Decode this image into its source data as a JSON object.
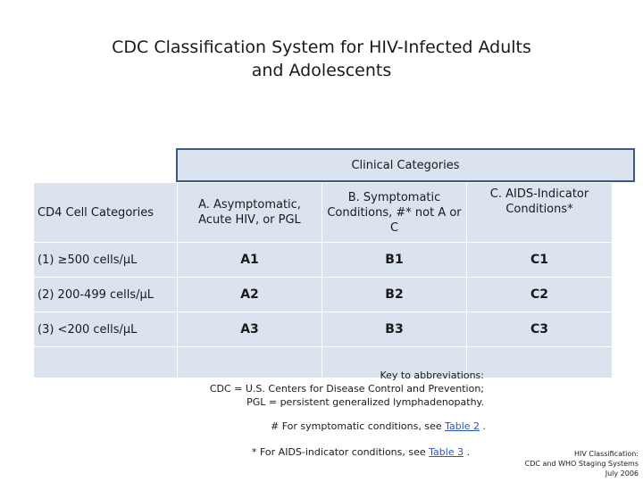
{
  "title": {
    "line1": "CDC Classification System for HIV-Infected Adults",
    "line2": "and Adolescents"
  },
  "clinical_header": "Clinical Categories",
  "table": {
    "row_header": "CD4 Cell Categories",
    "col_a": "A. Asymptomatic, Acute HIV, or PGL",
    "col_b": "B. Symptomatic Conditions, #* not A or C",
    "col_c": "C. AIDS-Indicator Conditions*",
    "rows": [
      {
        "label": "(1) ≥500 cells/µL",
        "a": "A1",
        "b": "B1",
        "c": "C1"
      },
      {
        "label": "(2) 200-499 cells/µL",
        "a": "A2",
        "b": "B2",
        "c": "C2"
      },
      {
        "label": "(3) <200 cells/µL",
        "a": "A3",
        "b": "B3",
        "c": "C3"
      }
    ]
  },
  "key": {
    "line1": "Key to abbreviations:",
    "line2": "CDC = U.S. Centers for Disease Control and Prevention;",
    "line3": "PGL = persistent generalized lymphadenopathy."
  },
  "notes": {
    "symptomatic_prefix": "# For symptomatic conditions, see ",
    "symptomatic_link": "Table 2",
    "symptomatic_suffix": " .",
    "aids_prefix": "* For AIDS-indicator conditions, see ",
    "aids_link": "Table 3",
    "aids_suffix": " ."
  },
  "footer": {
    "line1": "HIV Classification:",
    "line2": "CDC and WHO Staging Systems",
    "line3": "July 2006"
  }
}
